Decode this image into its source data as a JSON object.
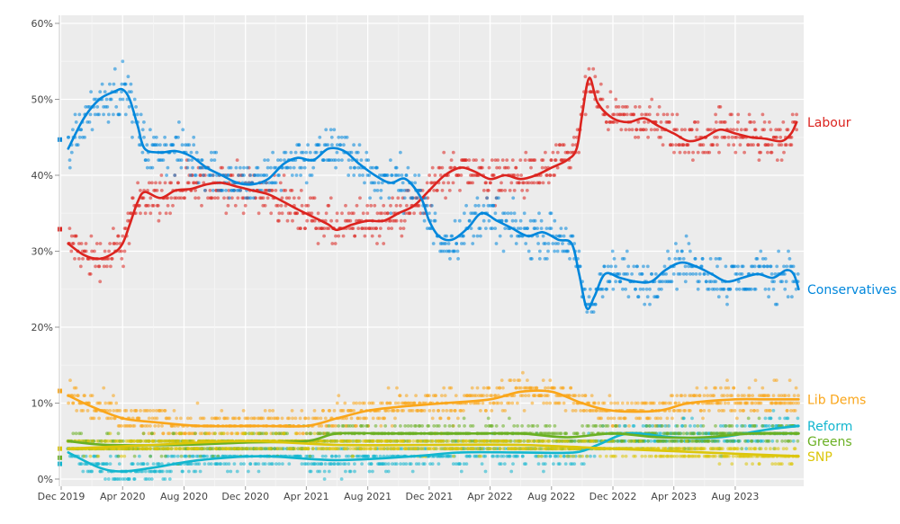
{
  "chart_data": {
    "type": "scatter",
    "title": "",
    "xlabel": "",
    "ylabel": "",
    "x_range": [
      "2019-12-01",
      "2023-12-15"
    ],
    "ylim": [
      0,
      60
    ],
    "y_ticks": [
      {
        "value": 0,
        "label": "0%"
      },
      {
        "value": 10,
        "label": "10%"
      },
      {
        "value": 20,
        "label": "20%"
      },
      {
        "value": 30,
        "label": "30%"
      },
      {
        "value": 40,
        "label": "40%"
      },
      {
        "value": 50,
        "label": "50%"
      },
      {
        "value": 60,
        "label": "60%"
      }
    ],
    "x_ticks": [
      {
        "date": "2019-12-01",
        "label": "Dec 2019"
      },
      {
        "date": "2020-04-01",
        "label": "Apr 2020"
      },
      {
        "date": "2020-08-01",
        "label": "Aug 2020"
      },
      {
        "date": "2020-12-01",
        "label": "Dec 2020"
      },
      {
        "date": "2021-04-01",
        "label": "Apr 2021"
      },
      {
        "date": "2021-08-01",
        "label": "Aug 2021"
      },
      {
        "date": "2021-12-01",
        "label": "Dec 2021"
      },
      {
        "date": "2022-04-01",
        "label": "Apr 2022"
      },
      {
        "date": "2022-08-01",
        "label": "Aug 2022"
      },
      {
        "date": "2022-12-01",
        "label": "Dec 2022"
      },
      {
        "date": "2023-04-01",
        "label": "Apr 2023"
      },
      {
        "date": "2023-08-01",
        "label": "Aug 2023"
      }
    ],
    "grid": true,
    "background": "#ececec",
    "series": [
      {
        "name": "Labour",
        "color": "#dc241f",
        "election_result": 32.9,
        "trend": [
          [
            "2019-12-15",
            31
          ],
          [
            "2020-01-15",
            29.5
          ],
          [
            "2020-02-15",
            29
          ],
          [
            "2020-03-15",
            29.8
          ],
          [
            "2020-04-01",
            31
          ],
          [
            "2020-04-15",
            33.5
          ],
          [
            "2020-05-01",
            36.5
          ],
          [
            "2020-05-15",
            37.8
          ],
          [
            "2020-06-15",
            37
          ],
          [
            "2020-07-15",
            38
          ],
          [
            "2020-08-15",
            38.2
          ],
          [
            "2020-09-15",
            38.8
          ],
          [
            "2020-10-15",
            39
          ],
          [
            "2020-11-15",
            38.5
          ],
          [
            "2020-12-15",
            38
          ],
          [
            "2021-01-15",
            37.5
          ],
          [
            "2021-02-15",
            36.5
          ],
          [
            "2021-03-15",
            35.5
          ],
          [
            "2021-04-15",
            34.5
          ],
          [
            "2021-05-15",
            33.5
          ],
          [
            "2021-06-01",
            32.8
          ],
          [
            "2021-07-01",
            33.5
          ],
          [
            "2021-08-01",
            34
          ],
          [
            "2021-09-01",
            34
          ],
          [
            "2021-10-01",
            35
          ],
          [
            "2021-11-01",
            36
          ],
          [
            "2021-12-01",
            38
          ],
          [
            "2022-01-01",
            40
          ],
          [
            "2022-02-01",
            41
          ],
          [
            "2022-03-01",
            40.5
          ],
          [
            "2022-04-01",
            39.5
          ],
          [
            "2022-05-01",
            40
          ],
          [
            "2022-06-01",
            39.5
          ],
          [
            "2022-07-01",
            40
          ],
          [
            "2022-08-01",
            41
          ],
          [
            "2022-09-01",
            42
          ],
          [
            "2022-09-20",
            43.5
          ],
          [
            "2022-10-01",
            48
          ],
          [
            "2022-10-15",
            52.8
          ],
          [
            "2022-11-01",
            49.5
          ],
          [
            "2022-12-01",
            47.5
          ],
          [
            "2023-01-01",
            47
          ],
          [
            "2023-02-01",
            47.5
          ],
          [
            "2023-03-01",
            46.5
          ],
          [
            "2023-04-01",
            45.5
          ],
          [
            "2023-05-01",
            44.5
          ],
          [
            "2023-06-01",
            45
          ],
          [
            "2023-07-01",
            46
          ],
          [
            "2023-08-01",
            45.5
          ],
          [
            "2023-09-01",
            45
          ],
          [
            "2023-10-01",
            44.8
          ],
          [
            "2023-11-01",
            44.5
          ],
          [
            "2023-11-20",
            45.5
          ],
          [
            "2023-12-01",
            47
          ]
        ]
      },
      {
        "name": "Conservatives",
        "color": "#0087dc",
        "election_result": 44.7,
        "trend": [
          [
            "2019-12-15",
            43.5
          ],
          [
            "2020-01-15",
            47.5
          ],
          [
            "2020-02-15",
            50
          ],
          [
            "2020-03-15",
            51
          ],
          [
            "2020-04-01",
            51.3
          ],
          [
            "2020-04-15",
            50
          ],
          [
            "2020-05-01",
            46.5
          ],
          [
            "2020-05-15",
            43.5
          ],
          [
            "2020-06-15",
            43
          ],
          [
            "2020-07-15",
            43.2
          ],
          [
            "2020-08-15",
            42.5
          ],
          [
            "2020-09-15",
            41
          ],
          [
            "2020-10-15",
            40
          ],
          [
            "2020-11-15",
            39
          ],
          [
            "2020-12-15",
            38.8
          ],
          [
            "2021-01-15",
            39.5
          ],
          [
            "2021-02-15",
            41.5
          ],
          [
            "2021-03-15",
            42.3
          ],
          [
            "2021-04-15",
            42
          ],
          [
            "2021-05-15",
            43.5
          ],
          [
            "2021-06-15",
            43.2
          ],
          [
            "2021-07-15",
            41.5
          ],
          [
            "2021-08-15",
            40
          ],
          [
            "2021-09-15",
            39
          ],
          [
            "2021-10-15",
            39.5
          ],
          [
            "2021-11-15",
            37
          ],
          [
            "2021-12-01",
            34
          ],
          [
            "2021-12-20",
            32
          ],
          [
            "2022-01-15",
            31.5
          ],
          [
            "2022-02-15",
            33
          ],
          [
            "2022-03-15",
            35
          ],
          [
            "2022-04-15",
            34
          ],
          [
            "2022-05-15",
            33
          ],
          [
            "2022-06-15",
            32
          ],
          [
            "2022-07-15",
            32.5
          ],
          [
            "2022-08-15",
            31.5
          ],
          [
            "2022-09-10",
            31
          ],
          [
            "2022-09-25",
            27
          ],
          [
            "2022-10-10",
            22.5
          ],
          [
            "2022-10-25",
            24
          ],
          [
            "2022-11-15",
            27
          ],
          [
            "2022-12-15",
            26.5
          ],
          [
            "2023-01-15",
            26
          ],
          [
            "2023-02-15",
            26
          ],
          [
            "2023-03-15",
            27.5
          ],
          [
            "2023-04-15",
            28.5
          ],
          [
            "2023-05-15",
            28
          ],
          [
            "2023-06-15",
            27
          ],
          [
            "2023-07-15",
            26
          ],
          [
            "2023-08-15",
            26.5
          ],
          [
            "2023-09-15",
            27
          ],
          [
            "2023-10-15",
            26.5
          ],
          [
            "2023-11-10",
            27.5
          ],
          [
            "2023-11-25",
            27
          ],
          [
            "2023-12-05",
            25
          ]
        ]
      },
      {
        "name": "Lib Dems",
        "color": "#faa61a",
        "election_result": 11.6,
        "trend": [
          [
            "2019-12-15",
            11
          ],
          [
            "2020-02-01",
            9.5
          ],
          [
            "2020-04-01",
            8
          ],
          [
            "2020-06-01",
            7.5
          ],
          [
            "2020-09-01",
            7
          ],
          [
            "2021-01-01",
            7
          ],
          [
            "2021-04-01",
            7
          ],
          [
            "2021-06-01",
            8
          ],
          [
            "2021-08-01",
            9
          ],
          [
            "2021-10-01",
            9.5
          ],
          [
            "2022-01-01",
            10
          ],
          [
            "2022-04-01",
            10.5
          ],
          [
            "2022-06-01",
            11.5
          ],
          [
            "2022-08-01",
            11.5
          ],
          [
            "2022-10-01",
            10
          ],
          [
            "2022-12-01",
            9
          ],
          [
            "2023-03-01",
            9
          ],
          [
            "2023-05-01",
            10
          ],
          [
            "2023-08-01",
            10.5
          ],
          [
            "2023-10-01",
            10.5
          ],
          [
            "2023-12-05",
            10.5
          ]
        ]
      },
      {
        "name": "Reform",
        "color": "#12b6cf",
        "election_result": 2.0,
        "trend": [
          [
            "2019-12-15",
            3.5
          ],
          [
            "2020-02-15",
            1.5
          ],
          [
            "2020-04-01",
            1
          ],
          [
            "2020-06-01",
            1.5
          ],
          [
            "2020-09-01",
            2.5
          ],
          [
            "2021-01-01",
            3
          ],
          [
            "2021-06-01",
            2.5
          ],
          [
            "2021-11-01",
            3
          ],
          [
            "2022-02-01",
            3.5
          ],
          [
            "2022-06-01",
            3.5
          ],
          [
            "2022-09-15",
            3.5
          ],
          [
            "2022-11-01",
            4.5
          ],
          [
            "2023-01-01",
            6
          ],
          [
            "2023-04-01",
            5.5
          ],
          [
            "2023-07-01",
            5.5
          ],
          [
            "2023-10-01",
            6.5
          ],
          [
            "2023-12-05",
            7
          ]
        ]
      },
      {
        "name": "Greens",
        "color": "#6ab023",
        "election_result": 2.8,
        "trend": [
          [
            "2019-12-15",
            5
          ],
          [
            "2020-03-01",
            4.5
          ],
          [
            "2020-08-01",
            4.5
          ],
          [
            "2020-12-01",
            4.8
          ],
          [
            "2021-04-01",
            5
          ],
          [
            "2021-06-01",
            6
          ],
          [
            "2021-09-01",
            6
          ],
          [
            "2021-12-01",
            6
          ],
          [
            "2022-03-01",
            6
          ],
          [
            "2022-06-01",
            6
          ],
          [
            "2022-09-01",
            5.5
          ],
          [
            "2022-12-01",
            6
          ],
          [
            "2023-03-01",
            5.5
          ],
          [
            "2023-06-01",
            5.5
          ],
          [
            "2023-09-01",
            6
          ],
          [
            "2023-12-05",
            6
          ]
        ]
      },
      {
        "name": "SNP",
        "color": "#dcc60a",
        "election_result": 4.0,
        "trend": [
          [
            "2019-12-15",
            4
          ],
          [
            "2020-06-01",
            4.5
          ],
          [
            "2020-12-01",
            5
          ],
          [
            "2021-06-01",
            4.5
          ],
          [
            "2021-12-01",
            4.5
          ],
          [
            "2022-06-01",
            4.5
          ],
          [
            "2022-12-01",
            4
          ],
          [
            "2023-06-01",
            3.5
          ],
          [
            "2023-12-05",
            3
          ]
        ]
      }
    ]
  }
}
